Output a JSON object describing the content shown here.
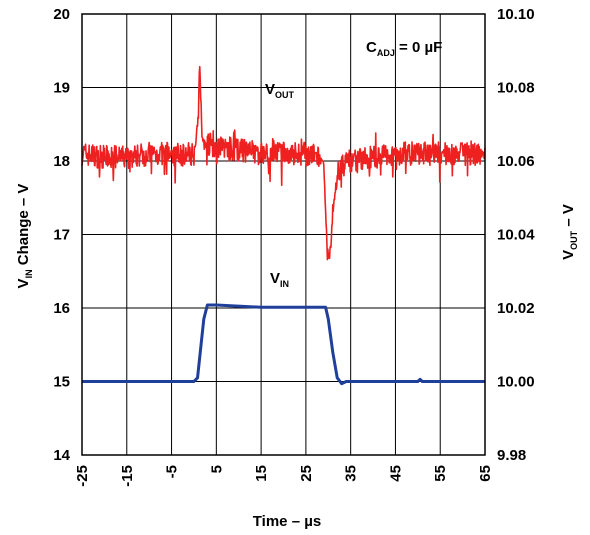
{
  "chart_data": {
    "type": "line",
    "x_axis": {
      "label_main": "Time",
      "label_sep": " – ",
      "label_unit": "µs",
      "range": [
        -25,
        65
      ],
      "tick_values": [
        -25,
        -15,
        -5,
        5,
        15,
        25,
        35,
        45,
        55,
        65
      ],
      "tick_labels": [
        "-25",
        "-15",
        "-5",
        "5",
        "15",
        "25",
        "35",
        "45",
        "55",
        "65"
      ]
    },
    "y_left": {
      "label_main": "V",
      "label_sub": "IN",
      "label_rest": " Change – V",
      "range": [
        14,
        20
      ],
      "tick_labels": [
        "14",
        "15",
        "16",
        "17",
        "18",
        "19",
        "20"
      ]
    },
    "y_right": {
      "label_main": "V",
      "label_sub": "OUT",
      "label_rest": " – V",
      "range": [
        9.98,
        10.1
      ],
      "tick_labels": [
        "9.98",
        "10.00",
        "10.02",
        "10.04",
        "10.06",
        "10.08",
        "10.10"
      ]
    },
    "grid": true,
    "annotations": {
      "cadj_main": "C",
      "cadj_sub": "ADJ",
      "cadj_rest": " = 0 µF",
      "vout_main": "V",
      "vout_sub": "OUT",
      "vin_main": "V",
      "vin_sub": "IN"
    },
    "series": [
      {
        "name": "VIN",
        "axis": "left",
        "color": "#1f3f9a",
        "x": [
          -25,
          0,
          0.8,
          1.5,
          2.2,
          3,
          5,
          15,
          25,
          29.4,
          30,
          31,
          32,
          33,
          34,
          40,
          50,
          50.5,
          51,
          65
        ],
        "y": [
          15.0,
          15.0,
          15.05,
          15.45,
          15.85,
          16.04,
          16.04,
          16.01,
          16.01,
          16.01,
          15.85,
          15.4,
          15.05,
          14.97,
          15.0,
          15.0,
          15.0,
          15.03,
          15.0,
          15.0
        ]
      },
      {
        "name": "VOUT",
        "axis": "right",
        "color": "#ee2020",
        "noise_seed": 7,
        "x": [
          -25,
          -20,
          -15,
          -10,
          -5,
          0,
          0.8,
          1.3,
          1.8,
          2.4,
          5,
          10,
          15,
          20,
          25,
          28,
          29,
          29.6,
          30.2,
          30.8,
          31.4,
          32.2,
          34,
          40,
          45,
          50,
          55,
          60,
          65
        ],
        "y": [
          10.062,
          10.061,
          10.061,
          10.062,
          10.062,
          10.062,
          10.07,
          10.087,
          10.066,
          10.065,
          10.064,
          10.063,
          10.062,
          10.062,
          10.062,
          10.061,
          10.058,
          10.04,
          10.032,
          10.041,
          10.05,
          10.057,
          10.06,
          10.061,
          10.062,
          10.062,
          10.062,
          10.062,
          10.062
        ]
      }
    ]
  }
}
